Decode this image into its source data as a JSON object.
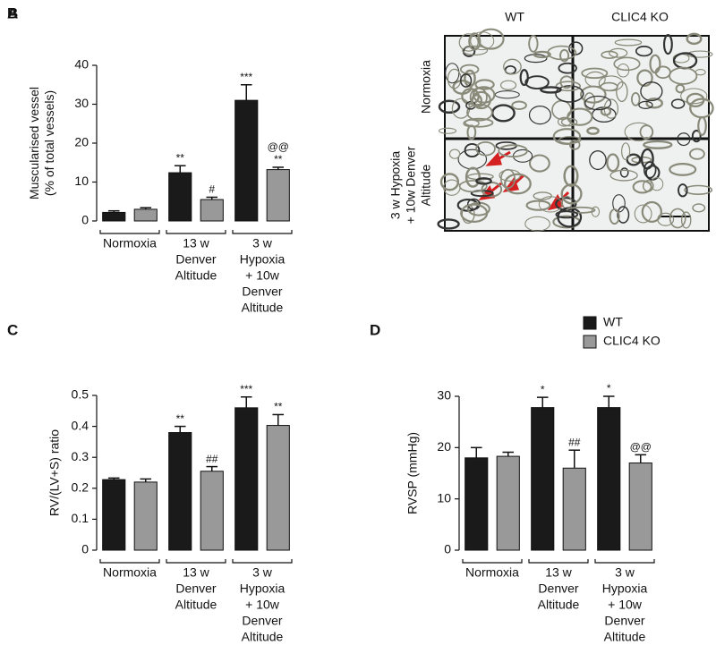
{
  "chart_data": [
    {
      "type": "bar",
      "panel_label": "A",
      "ylabel": [
        "Muscularised vessel",
        "(% of total vessels)"
      ],
      "categories": [
        [
          "Normoxia"
        ],
        [
          "13 w",
          "Denver",
          "Altitude"
        ],
        [
          "3 w",
          "Hypoxia",
          "+ 10w",
          "Denver",
          "Altitude"
        ]
      ],
      "ylim": [
        0,
        40
      ],
      "yticks": [
        0,
        10,
        20,
        30,
        40
      ],
      "series": [
        {
          "color": "#1a1a1a",
          "values": [
            2.2,
            12.4,
            31
          ],
          "errors": [
            0.4,
            1.8,
            4
          ],
          "annotations": [
            null,
            [
              "**"
            ],
            [
              "***"
            ]
          ]
        },
        {
          "color": "#999999",
          "values": [
            3,
            5.5,
            13.2
          ],
          "errors": [
            0.4,
            0.6,
            0.6
          ],
          "annotations": [
            null,
            [
              "#"
            ],
            [
              "@@",
              "**"
            ]
          ]
        }
      ]
    },
    {
      "type": "bar",
      "panel_label": "C",
      "ylabel": [
        "RV/(LV+S) ratio"
      ],
      "categories": [
        [
          "Normoxia"
        ],
        [
          "13 w",
          "Denver",
          "Altitude"
        ],
        [
          "3 w",
          "Hypoxia",
          "+ 10w",
          "Denver",
          "Altitude"
        ]
      ],
      "ylim": [
        0,
        0.5
      ],
      "yticks": [
        0,
        0.1,
        0.2,
        0.3,
        0.4,
        0.5
      ],
      "series": [
        {
          "name": "WT",
          "color": "#1a1a1a",
          "values": [
            0.228,
            0.38,
            0.46
          ],
          "errors": [
            0.005,
            0.02,
            0.035
          ],
          "annotations": [
            null,
            [
              "**"
            ],
            [
              "***"
            ]
          ]
        },
        {
          "name": "CLIC4 KO",
          "color": "#999999",
          "values": [
            0.22,
            0.255,
            0.403
          ],
          "errors": [
            0.01,
            0.015,
            0.035
          ],
          "annotations": [
            null,
            [
              "##"
            ],
            [
              "**"
            ]
          ]
        }
      ]
    },
    {
      "type": "bar",
      "panel_label": "D",
      "ylabel": [
        "RVSP (mmHg)"
      ],
      "categories": [
        [
          "Normoxia"
        ],
        [
          "13 w",
          "Denver",
          "Altitude"
        ],
        [
          "3 w",
          "Hypoxia",
          "+ 10w",
          "Denver",
          "Altitude"
        ]
      ],
      "ylim": [
        0,
        30
      ],
      "yticks": [
        0,
        10,
        20,
        30
      ],
      "series": [
        {
          "color": "#1a1a1a",
          "values": [
            18,
            27.8,
            27.8
          ],
          "errors": [
            2,
            2,
            2.2
          ],
          "annotations": [
            null,
            [
              "*"
            ],
            [
              "*"
            ]
          ]
        },
        {
          "color": "#999999",
          "values": [
            18.3,
            16,
            17
          ],
          "errors": [
            0.8,
            3.5,
            1.6
          ],
          "annotations": [
            null,
            [
              "##"
            ],
            [
              "@@"
            ]
          ]
        }
      ]
    }
  ],
  "panel_b": {
    "panel_label": "B",
    "columns": [
      "WT",
      "CLIC4 KO"
    ],
    "rows": [
      [
        "Normoxia"
      ],
      [
        "3 w Hypoxia",
        "+ 10w Denver",
        "Altitude"
      ]
    ]
  }
}
